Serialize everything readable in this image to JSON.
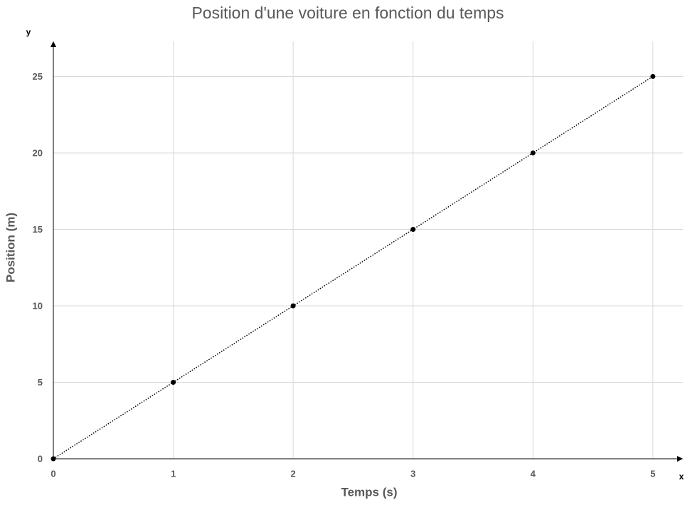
{
  "chart_data": {
    "type": "scatter",
    "title": "Position d'une voiture en fonction du temps",
    "x_label": "Temps (s)",
    "y_label": "Position (m)",
    "x_axis_name": "x",
    "y_axis_name": "y",
    "x": [
      0,
      1,
      2,
      3,
      4,
      5
    ],
    "values": [
      0,
      5,
      10,
      15,
      20,
      25
    ],
    "color": "#000000",
    "line_style": "dotted",
    "xlim": [
      0,
      5.25
    ],
    "ylim": [
      0,
      27.3
    ],
    "xticks": [
      0,
      1,
      2,
      3,
      4,
      5
    ],
    "yticks": [
      0,
      5,
      10,
      15,
      20,
      25
    ],
    "grid": true
  }
}
